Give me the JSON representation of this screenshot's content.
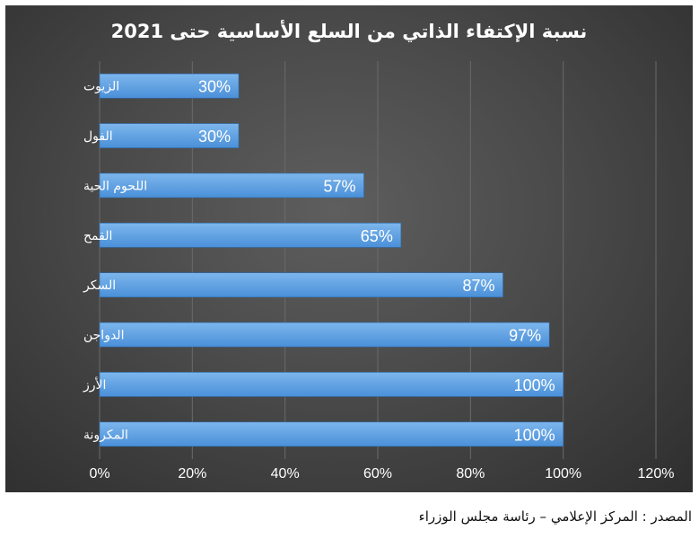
{
  "chart_data": {
    "type": "bar",
    "orientation": "horizontal",
    "title": "نسبة الإكتفاء الذاتي من السلع الأساسية حتى 2021",
    "categories": [
      "الزيوت",
      "الفول",
      "اللحوم الحية",
      "القمح",
      "السكر",
      "الدواجن",
      "الأرز",
      "المكرونة"
    ],
    "values": [
      30,
      30,
      57,
      65,
      87,
      97,
      100,
      100
    ],
    "value_labels": [
      "30%",
      "30%",
      "57%",
      "65%",
      "87%",
      "97%",
      "100%",
      "100%"
    ],
    "xlim": [
      0,
      120
    ],
    "x_ticks": [
      0,
      20,
      40,
      60,
      80,
      100,
      120
    ],
    "x_tick_labels": [
      "0%",
      "20%",
      "40%",
      "60%",
      "80%",
      "100%",
      "120%"
    ],
    "grid": true,
    "legend": "none",
    "colors": {
      "bar": "#4a90d9",
      "bar_light": "#7db6ec",
      "panel": "#474747",
      "text": "#ffffff",
      "grid": "#6a6a6a"
    }
  },
  "source": "المصدر : المركز الإعلامي – رئاسة مجلس الوزراء"
}
